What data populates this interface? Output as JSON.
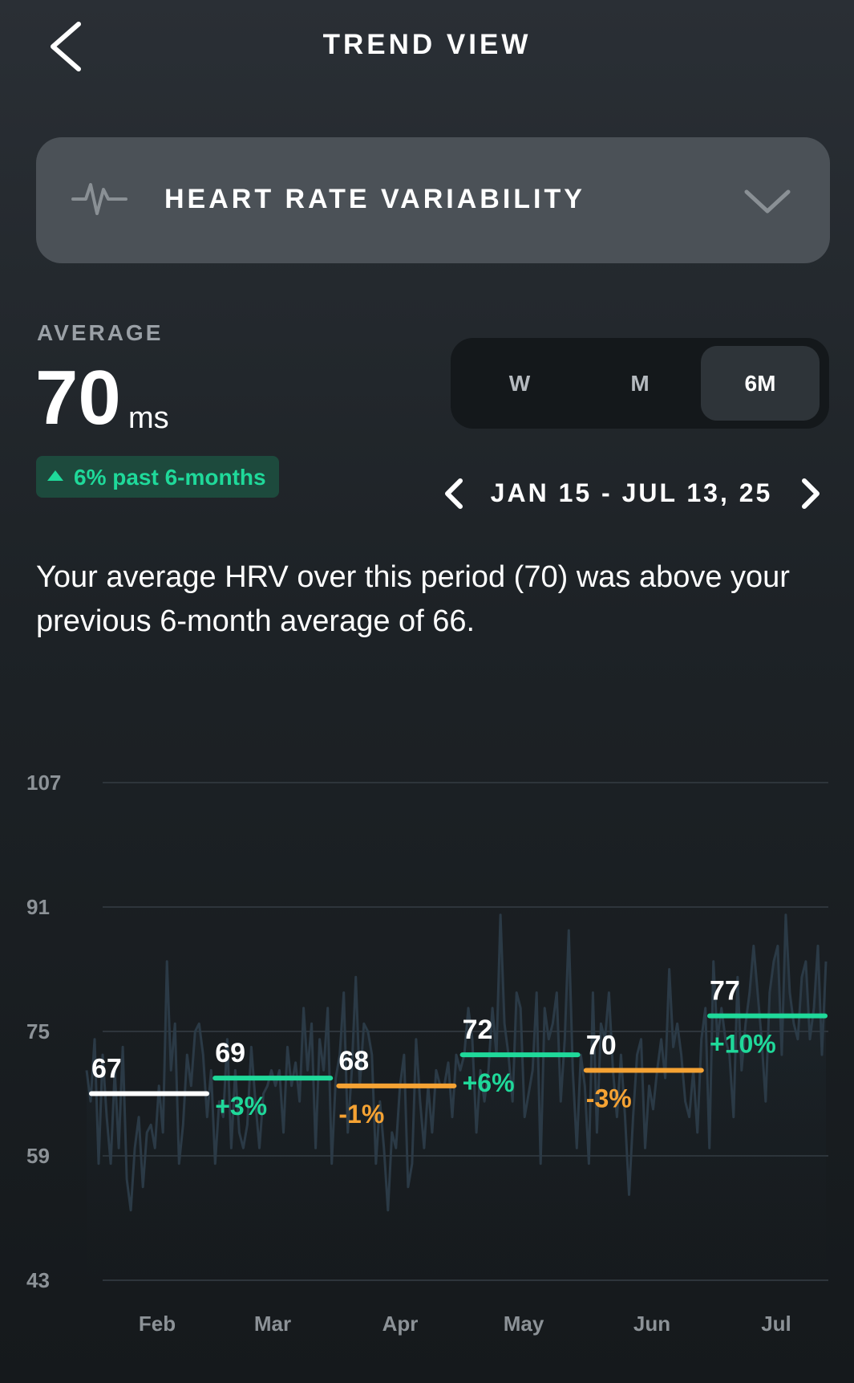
{
  "header": {
    "title": "TREND VIEW"
  },
  "metric": {
    "label": "HEART RATE VARIABILITY"
  },
  "average": {
    "label": "AVERAGE",
    "value": "70",
    "unit": "ms",
    "change_text": "6% past 6-months"
  },
  "segments": [
    {
      "label": "W",
      "active": false
    },
    {
      "label": "M",
      "active": false
    },
    {
      "label": "6M",
      "active": true
    }
  ],
  "range": {
    "text": "JAN 15 - JUL 13, 25"
  },
  "description": "Your average HRV over this period (70) was above your previous 6-month average of 66.",
  "colors": {
    "accent_green": "#1fd99a",
    "accent_orange": "#f5a233",
    "neutral_white": "#ffffff"
  },
  "chart_data": {
    "type": "line",
    "title": "",
    "xlabel": "",
    "ylabel": "",
    "ylim": [
      43,
      107
    ],
    "yticks": [
      107,
      91,
      75,
      59,
      43
    ],
    "x_tick_labels": [
      "Feb",
      "Mar",
      "Apr",
      "May",
      "Jun",
      "Jul"
    ],
    "monthly_averages": [
      {
        "value": 67,
        "change": "",
        "color": "#ffffff"
      },
      {
        "value": 69,
        "change": "+3%",
        "color": "#1fd99a"
      },
      {
        "value": 68,
        "change": "-1%",
        "color": "#f5a233"
      },
      {
        "value": 72,
        "change": "+6%",
        "color": "#1fd99a"
      },
      {
        "value": 70,
        "change": "-3%",
        "color": "#f5a233"
      },
      {
        "value": 77,
        "change": "+10%",
        "color": "#1fd99a"
      }
    ],
    "daily_series": [
      70,
      66,
      74,
      58,
      72,
      64,
      58,
      70,
      60,
      73,
      56,
      52,
      60,
      64,
      55,
      62,
      63,
      60,
      68,
      62,
      84,
      70,
      76,
      58,
      63,
      72,
      68,
      75,
      76,
      72,
      64,
      70,
      58,
      66,
      64,
      74,
      60,
      70,
      62,
      60,
      63,
      73,
      66,
      60,
      67,
      68,
      70,
      68,
      70,
      62,
      73,
      68,
      71,
      66,
      78,
      70,
      76,
      60,
      74,
      70,
      78,
      58,
      69,
      72,
      80,
      62,
      70,
      82,
      68,
      76,
      75,
      72,
      58,
      66,
      60,
      52,
      62,
      60,
      68,
      72,
      55,
      58,
      74,
      66,
      60,
      68,
      62,
      70,
      68,
      68,
      71,
      64,
      72,
      70,
      72,
      78,
      74,
      62,
      70,
      66,
      70,
      78,
      72,
      90,
      76,
      72,
      66,
      80,
      78,
      64,
      67,
      70,
      80,
      58,
      78,
      74,
      76,
      80,
      66,
      74,
      88,
      70,
      60,
      72,
      68,
      58,
      80,
      62,
      76,
      74,
      80,
      70,
      64,
      72,
      64,
      54,
      64,
      72,
      74,
      60,
      68,
      65,
      70,
      74,
      69,
      83,
      73,
      76,
      72,
      66,
      64,
      70,
      62,
      74,
      78,
      60,
      84,
      74,
      78,
      74,
      72,
      64,
      82,
      70,
      76,
      80,
      86,
      80,
      74,
      66,
      80,
      84,
      86,
      72,
      90,
      80,
      76,
      74,
      82,
      84,
      74,
      78,
      86,
      72,
      84
    ]
  }
}
